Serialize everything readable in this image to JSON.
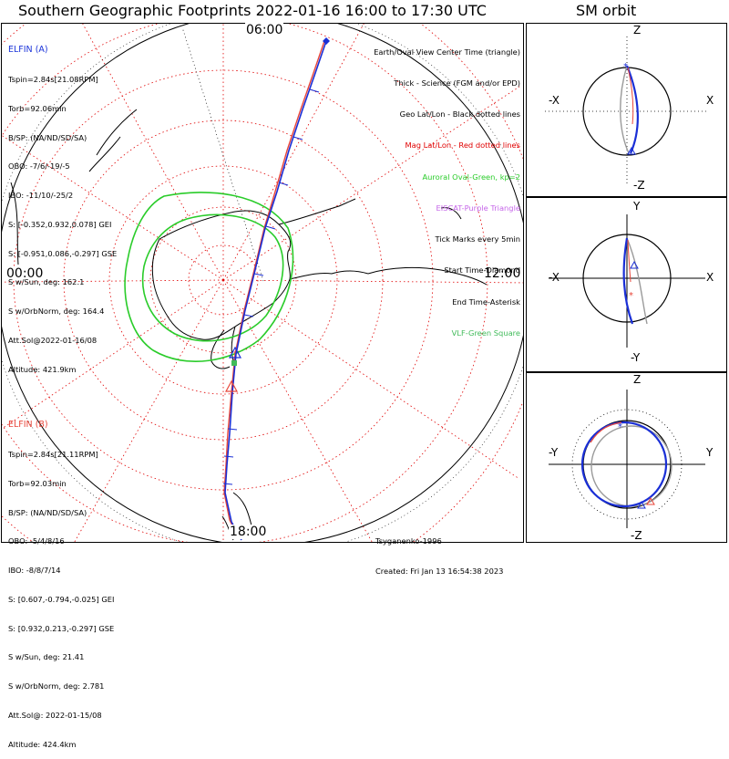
{
  "header": {
    "title": "Southern Geographic Footprints 2022-01-16 16:00 to 17:30 UTC",
    "side_title": "SM orbit"
  },
  "elfin_a": {
    "title": "ELFIN (A)",
    "lines": [
      "Tspin=2.84s[21.08RPM]",
      "Torb=92.06min",
      "B/SP: (NA/ND/SD/SA)",
      "OBO: -7/6/-19/-5",
      "IBO: -11/10/-25/2",
      "S: [-0.352,0.932,0.078] GEI",
      "S: [-0.951,0.086,-0.297] GSE",
      "S w/Sun, deg: 162.1",
      "S w/OrbNorm, deg: 164.4",
      "Att.Sol@2022-01-16/08",
      "Altitude: 421.9km"
    ]
  },
  "elfin_b": {
    "title": "ELFIN (B)",
    "lines": [
      "Tspin=2.84s[21.11RPM]",
      "Torb=92.03min",
      "B/SP: (NA/ND/SD/SA)",
      "OBO: -5/4/8/16",
      "IBO: -8/8/7/14",
      "S: [0.607,-0.794,-0.025] GEI",
      "S: [0.932,0.213,-0.297] GSE",
      "S w/Sun, deg: 21.41",
      "S w/OrbNorm, deg: 2.781",
      "Att.Sol@: 2022-01-15/08",
      "Altitude: 424.4km"
    ]
  },
  "legend": [
    {
      "text": "Earth/Oval View Center Time (triangle)",
      "color": "#000000"
    },
    {
      "text": "Thick - Science (FGM and/or EPD)",
      "color": "#000000"
    },
    {
      "text": "Geo Lat/Lon - Black dotted lines",
      "color": "#000000"
    },
    {
      "text": "Mag Lat/Lon - Red dotted lines",
      "color": "#e00000"
    },
    {
      "text": "Auroral Oval-Green, kp=2",
      "color": "#2acc2a"
    },
    {
      "text": "EISCAT-Purple Triangle",
      "color": "#c565e8"
    },
    {
      "text": "Tick Marks every 5min",
      "color": "#000000"
    },
    {
      "text": "Start Time-Diamond",
      "color": "#000000"
    },
    {
      "text": "End Time-Asterisk",
      "color": "#000000"
    },
    {
      "text": "VLF-Green Square",
      "color": "#41bb5a"
    }
  ],
  "footer": {
    "model": "Tsyganenko-1996",
    "created": "Created: Fri Jan 13 16:54:38 2023"
  },
  "map": {
    "hours": {
      "top": "06:00",
      "left": "00:00",
      "right": "12:00",
      "bottom": "18:00"
    },
    "colors": {
      "trace_a": "#1a2fd6",
      "trace_b": "#e8463a",
      "oval": "#2acc2a",
      "mag_grid": "#e00000",
      "coast": "#000000"
    }
  },
  "orbit_panels": [
    {
      "top": "Z",
      "bottom": "-Z",
      "left": "-X",
      "right": "X"
    },
    {
      "top": "Y",
      "bottom": "-Y",
      "left": "-X",
      "right": "X"
    },
    {
      "top": "Z",
      "bottom": "-Z",
      "left": "-Y",
      "right": "Y"
    }
  ]
}
